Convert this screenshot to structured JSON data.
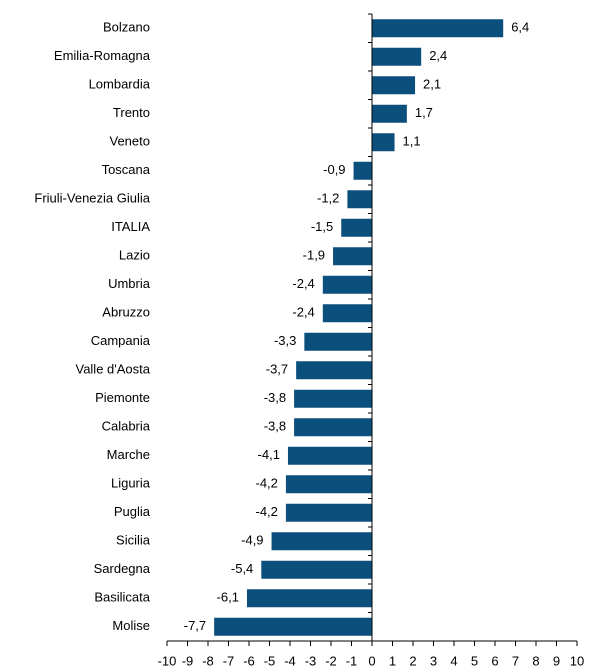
{
  "chart_data": {
    "type": "bar",
    "orientation": "horizontal",
    "categories": [
      "Bolzano",
      "Emilia-Romagna",
      "Lombardia",
      "Trento",
      "Veneto",
      "Toscana",
      "Friuli-Venezia Giulia",
      "ITALIA",
      "Lazio",
      "Umbria",
      "Abruzzo",
      "Campania",
      "Valle d'Aosta",
      "Piemonte",
      "Calabria",
      "Marche",
      "Liguria",
      "Puglia",
      "Sicilia",
      "Sardegna",
      "Basilicata",
      "Molise"
    ],
    "values": [
      6.4,
      2.4,
      2.1,
      1.7,
      1.1,
      -0.9,
      -1.2,
      -1.5,
      -1.9,
      -2.4,
      -2.4,
      -3.3,
      -3.7,
      -3.8,
      -3.8,
      -4.1,
      -4.2,
      -4.2,
      -4.9,
      -5.4,
      -6.1,
      -7.7
    ],
    "value_labels": [
      "6,4",
      "2,4",
      "2,1",
      "1,7",
      "1,1",
      "-0,9",
      "-1,2",
      "-1,5",
      "-1,9",
      "-2,4",
      "-2,4",
      "-3,3",
      "-3,7",
      "-3,8",
      "-3,8",
      "-4,1",
      "-4,2",
      "-4,2",
      "-4,9",
      "-5,4",
      "-6,1",
      "-7,7"
    ],
    "color": "#0b4f7d",
    "xlim": [
      -10,
      10
    ],
    "xticks": [
      -10,
      -9,
      -8,
      -7,
      -6,
      -5,
      -4,
      -3,
      -2,
      -1,
      0,
      1,
      2,
      3,
      4,
      5,
      6,
      7,
      8,
      9,
      10
    ]
  }
}
